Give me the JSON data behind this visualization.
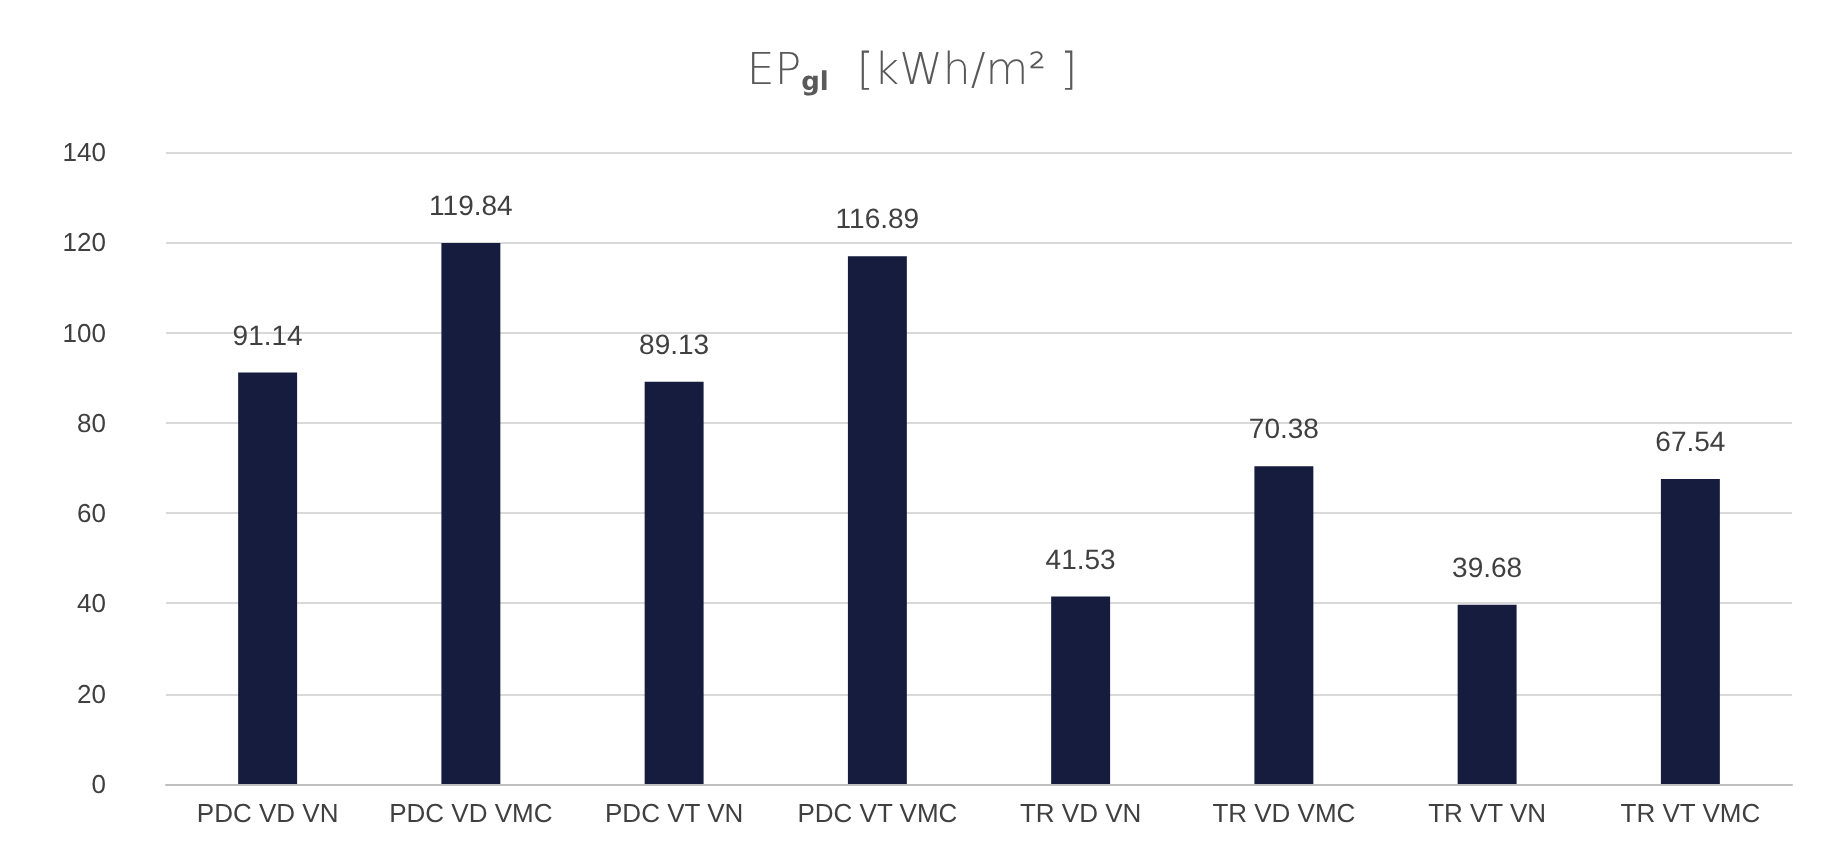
{
  "chart_data": {
    "type": "bar",
    "title": "EP$_{gl}$  [kWh/m² ]",
    "categories": [
      "PDC VD VN",
      "PDC VD VMC",
      "PDC VT VN",
      "PDC VT VMC",
      "TR VD VN",
      "TR VD VMC",
      "TR VT VN",
      "TR VT VMC"
    ],
    "values": [
      91.14,
      119.84,
      89.13,
      116.89,
      41.53,
      70.38,
      39.68,
      67.54
    ],
    "color": "#161c3e",
    "ylim": [
      0,
      140
    ],
    "yticks": [
      0,
      20,
      40,
      60,
      80,
      100,
      120,
      140
    ],
    "grid": "y",
    "data_labels": true
  }
}
